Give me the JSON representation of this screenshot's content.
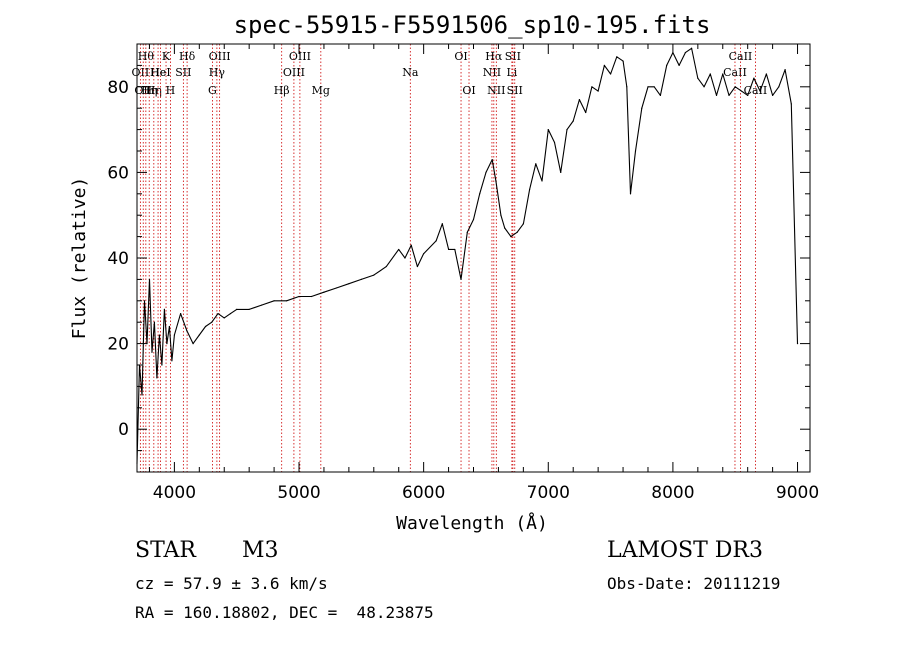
{
  "chart_data": {
    "type": "line",
    "title": "spec-55915-F5591506_sp10-195.fits",
    "xlabel": "Wavelength (Å)",
    "ylabel": "Flux (relative)",
    "xlim": [
      3700,
      9100
    ],
    "ylim": [
      -10,
      90
    ],
    "xticks": [
      4000,
      5000,
      6000,
      7000,
      8000,
      9000
    ],
    "yticks": [
      0,
      20,
      40,
      60,
      80
    ],
    "series": [
      {
        "name": "flux",
        "x": [
          3700,
          3720,
          3740,
          3760,
          3780,
          3800,
          3820,
          3840,
          3860,
          3880,
          3900,
          3920,
          3940,
          3960,
          3980,
          4000,
          4050,
          4100,
          4150,
          4200,
          4250,
          4300,
          4350,
          4400,
          4450,
          4500,
          4600,
          4700,
          4800,
          4900,
          5000,
          5100,
          5200,
          5300,
          5400,
          5500,
          5600,
          5700,
          5800,
          5850,
          5900,
          5950,
          6000,
          6100,
          6150,
          6200,
          6250,
          6300,
          6350,
          6400,
          6450,
          6500,
          6550,
          6580,
          6620,
          6650,
          6700,
          6750,
          6800,
          6850,
          6900,
          6950,
          7000,
          7050,
          7100,
          7150,
          7200,
          7250,
          7300,
          7350,
          7400,
          7450,
          7500,
          7550,
          7600,
          7630,
          7660,
          7700,
          7750,
          7800,
          7850,
          7900,
          7950,
          8000,
          8050,
          8100,
          8150,
          8200,
          8250,
          8300,
          8350,
          8400,
          8450,
          8500,
          8550,
          8600,
          8650,
          8700,
          8750,
          8800,
          8850,
          8900,
          8950,
          9000
        ],
        "values": [
          -8,
          15,
          8,
          30,
          20,
          35,
          18,
          25,
          12,
          22,
          15,
          28,
          20,
          24,
          16,
          22,
          27,
          23,
          20,
          22,
          24,
          25,
          27,
          26,
          27,
          28,
          28,
          29,
          30,
          30,
          31,
          31,
          32,
          33,
          34,
          35,
          36,
          38,
          42,
          40,
          43,
          38,
          41,
          44,
          48,
          42,
          42,
          35,
          46,
          49,
          55,
          60,
          63,
          58,
          50,
          47,
          45,
          46,
          48,
          56,
          62,
          58,
          70,
          67,
          60,
          70,
          72,
          77,
          74,
          80,
          79,
          85,
          83,
          87,
          86,
          80,
          55,
          65,
          75,
          80,
          80,
          78,
          85,
          88,
          85,
          88,
          89,
          82,
          80,
          83,
          78,
          83,
          78,
          80,
          79,
          78,
          82,
          79,
          83,
          78,
          80,
          84,
          76,
          20
        ]
      }
    ],
    "lines": [
      {
        "wl": 3727,
        "label": "OII",
        "row": 2
      },
      {
        "wl": 3750,
        "label": "OII",
        "row": 3
      },
      {
        "wl": 3771,
        "label": "Hθ",
        "row": 1
      },
      {
        "wl": 3798,
        "label": "Hη",
        "row": 3
      },
      {
        "wl": 3835,
        "label": "Hη",
        "row": 3
      },
      {
        "wl": 3869,
        "label": "He",
        "row": 2
      },
      {
        "wl": 3889,
        "label": "HeI",
        "row": 2
      },
      {
        "wl": 3933,
        "label": "K",
        "row": 1
      },
      {
        "wl": 3968,
        "label": "H",
        "row": 3
      },
      {
        "wl": 4072,
        "label": "SII",
        "row": 2
      },
      {
        "wl": 4102,
        "label": "Hδ",
        "row": 1
      },
      {
        "wl": 4305,
        "label": "G",
        "row": 3
      },
      {
        "wl": 4341,
        "label": "Hγ",
        "row": 2
      },
      {
        "wl": 4363,
        "label": "OIII",
        "row": 1
      },
      {
        "wl": 4861,
        "label": "Hβ",
        "row": 3
      },
      {
        "wl": 4959,
        "label": "OIII",
        "row": 2
      },
      {
        "wl": 5007,
        "label": "OIII",
        "row": 1
      },
      {
        "wl": 5175,
        "label": "Mg",
        "row": 3
      },
      {
        "wl": 5893,
        "label": "Na",
        "row": 2
      },
      {
        "wl": 6300,
        "label": "OI",
        "row": 1
      },
      {
        "wl": 6364,
        "label": "OI",
        "row": 3
      },
      {
        "wl": 6548,
        "label": "NII",
        "row": 2
      },
      {
        "wl": 6563,
        "label": "Hα",
        "row": 1
      },
      {
        "wl": 6583,
        "label": "NII",
        "row": 3
      },
      {
        "wl": 6708,
        "label": "Li",
        "row": 2
      },
      {
        "wl": 6716,
        "label": "SII",
        "row": 1
      },
      {
        "wl": 6731,
        "label": "SII",
        "row": 3
      },
      {
        "wl": 8498,
        "label": "CaII",
        "row": 2
      },
      {
        "wl": 8542,
        "label": "CaII",
        "row": 1
      },
      {
        "wl": 8662,
        "label": "CaII",
        "row": 3
      }
    ]
  },
  "info": {
    "object_class": "STAR",
    "subclass": "M3",
    "survey": "LAMOST DR3",
    "cz": "cz = 57.9 ± 3.6 km/s",
    "obs_date": "Obs-Date: 20111219",
    "coords": "RA = 160.18802, DEC =  48.23875"
  },
  "colors": {
    "line": "#000000",
    "marker": "#cc0000"
  }
}
